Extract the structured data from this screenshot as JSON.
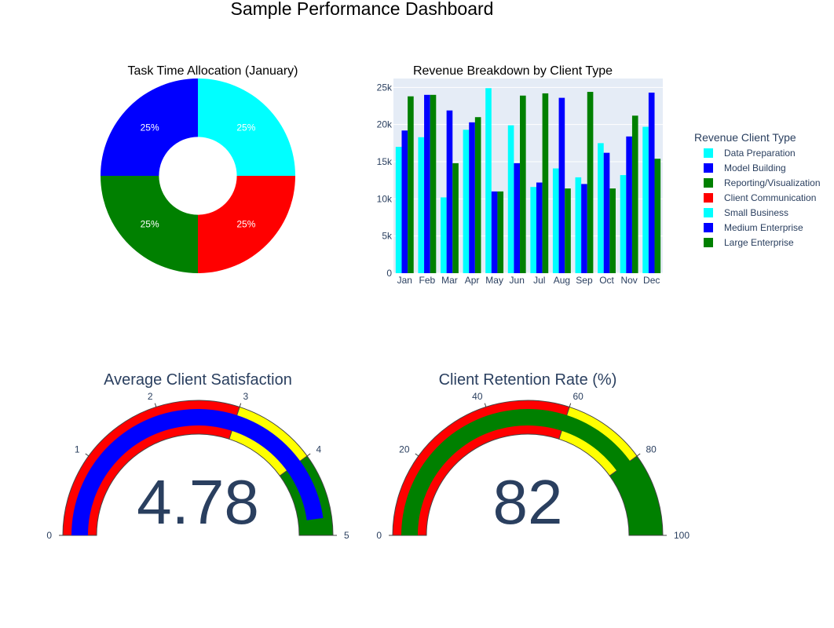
{
  "title": "Sample Performance Dashboard",
  "chart_data": [
    {
      "type": "pie",
      "hole": 0.4,
      "title": "Task Time Allocation (January)",
      "labels": [
        "Data Preparation",
        "Model Building",
        "Reporting/Visualization",
        "Client Communication"
      ],
      "values": [
        25,
        25,
        25,
        25
      ],
      "colors": [
        "#00ffff",
        "#0000ff",
        "#008000",
        "#ff0000"
      ],
      "text_labels": [
        "25%",
        "25%",
        "25%",
        "25%"
      ],
      "direction": "clockwise",
      "rotation_start": "top"
    },
    {
      "type": "bar",
      "barmode": "group",
      "title": "Revenue Breakdown by Client Type",
      "categories": [
        "Jan",
        "Feb",
        "Mar",
        "Apr",
        "May",
        "Jun",
        "Jul",
        "Aug",
        "Sep",
        "Oct",
        "Nov",
        "Dec"
      ],
      "series": [
        {
          "name": "Small Business",
          "color": "#00ffff",
          "values": [
            17000,
            18300,
            10200,
            19300,
            24900,
            19900,
            11600,
            14100,
            12900,
            17500,
            13200,
            19700
          ]
        },
        {
          "name": "Medium Enterprise",
          "color": "#0000ff",
          "values": [
            19200,
            24000,
            21900,
            20300,
            11000,
            14800,
            12200,
            23600,
            12000,
            16200,
            18400,
            24300
          ]
        },
        {
          "name": "Large Enterprise",
          "color": "#008000",
          "values": [
            23800,
            24000,
            14800,
            21000,
            11000,
            23900,
            24200,
            11400,
            24400,
            11400,
            21200,
            15400
          ]
        }
      ],
      "ylim": [
        0,
        26200
      ],
      "yticks": [
        0,
        5000,
        10000,
        15000,
        20000,
        25000
      ],
      "ytick_labels": [
        "0",
        "5k",
        "10k",
        "15k",
        "20k",
        "25k"
      ],
      "grid": true,
      "plot_bg": "#e5ecf6"
    },
    {
      "type": "gauge",
      "title": "Average Client Satisfaction",
      "value": 4.78,
      "value_label": "4.78",
      "range": [
        0,
        5
      ],
      "ticks": [
        0,
        1,
        2,
        3,
        4,
        5
      ],
      "bar_color": "#0000ff",
      "steps": [
        {
          "range": [
            0,
            3
          ],
          "color": "#ff0000"
        },
        {
          "range": [
            3,
            4
          ],
          "color": "#ffff00"
        },
        {
          "range": [
            4,
            5
          ],
          "color": "#008000"
        }
      ]
    },
    {
      "type": "gauge",
      "title": "Client Retention Rate (%)",
      "value": 82,
      "value_label": "82",
      "range": [
        0,
        100
      ],
      "ticks": [
        0,
        20,
        40,
        60,
        80,
        100
      ],
      "bar_color": "#008000",
      "steps": [
        {
          "range": [
            0,
            60
          ],
          "color": "#ff0000"
        },
        {
          "range": [
            60,
            80
          ],
          "color": "#ffff00"
        },
        {
          "range": [
            80,
            100
          ],
          "color": "#008000"
        }
      ]
    }
  ],
  "legend": {
    "title": "Revenue Client Type",
    "placement": "right",
    "items": [
      {
        "label": "Data Preparation",
        "color": "#00ffff"
      },
      {
        "label": "Model Building",
        "color": "#0000ff"
      },
      {
        "label": "Reporting/Visualization",
        "color": "#008000"
      },
      {
        "label": "Client Communication",
        "color": "#ff0000"
      },
      {
        "label": "Small Business",
        "color": "#00ffff"
      },
      {
        "label": "Medium Enterprise",
        "color": "#0000ff"
      },
      {
        "label": "Large Enterprise",
        "color": "#008000"
      }
    ]
  }
}
